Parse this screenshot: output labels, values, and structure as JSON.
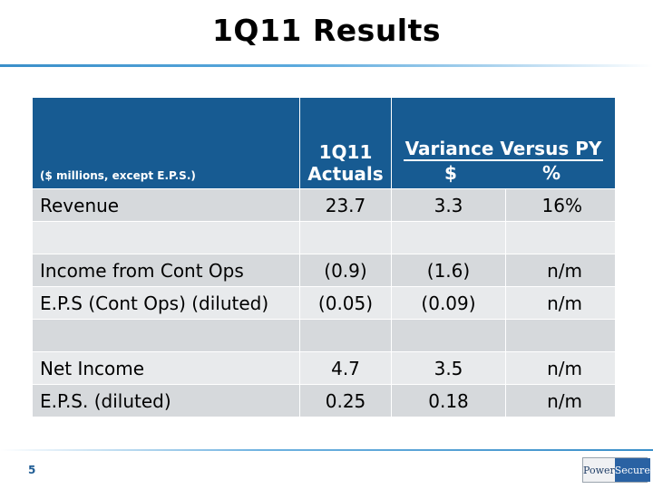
{
  "slide": {
    "title": "1Q11 Results",
    "page_number": "5"
  },
  "table": {
    "units_note": "($ millions, except E.P.S.)",
    "col_actuals": "1Q11 Actuals",
    "col_variance": "Variance Versus PY",
    "col_variance_dollar": "$",
    "col_variance_pct": "%",
    "rows": [
      {
        "label": "Revenue",
        "actuals": "23.7",
        "var_dollar": "3.3",
        "var_pct": "16%"
      },
      {
        "label": "",
        "actuals": "",
        "var_dollar": "",
        "var_pct": ""
      },
      {
        "label": "Income from Cont Ops",
        "actuals": "(0.9)",
        "var_dollar": "(1.6)",
        "var_pct": "n/m"
      },
      {
        "label": "E.P.S (Cont Ops) (diluted)",
        "actuals": "(0.05)",
        "var_dollar": "(0.09)",
        "var_pct": "n/m"
      },
      {
        "label": "",
        "actuals": "",
        "var_dollar": "",
        "var_pct": ""
      },
      {
        "label": "Net Income",
        "actuals": "4.7",
        "var_dollar": "3.5",
        "var_pct": "n/m"
      },
      {
        "label": "E.P.S. (diluted)",
        "actuals": "0.25",
        "var_dollar": "0.18",
        "var_pct": "n/m"
      }
    ]
  },
  "logo": {
    "left_text": "Power",
    "right_text": "Secure"
  },
  "colors": {
    "header_bg": "#175b92",
    "row_odd": "#d6d9dc",
    "row_even": "#e8eaec",
    "accent_rule": "#3a8fc9"
  }
}
